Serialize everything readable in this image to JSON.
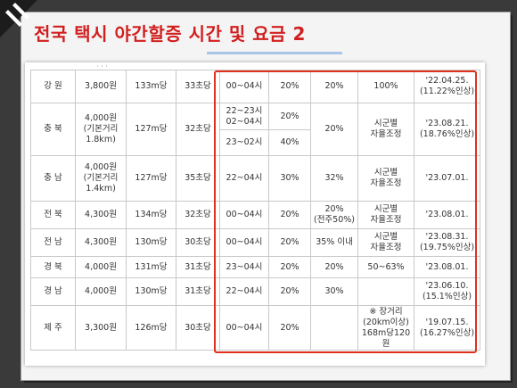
{
  "slide": {
    "title": "전국 택시 야간할증 시간 및 요금 2"
  },
  "table": {
    "rows": [
      {
        "region": "강 원",
        "fare": "3,800원",
        "dist": "133m당",
        "time": "33초당",
        "hours": "00~04시",
        "rate1": "20%",
        "rate2": "20%",
        "note": "100%",
        "date": "'22.04.25.",
        "date2": "(11.22%인상)"
      },
      {
        "region": "충 북",
        "fare": "4,000원",
        "fare2": "(기본거리",
        "fare3": "1.8km)",
        "dist": "127m당",
        "time": "32초당",
        "hours_a": "22~23시",
        "hours_a2": "02~04시",
        "rate1_a": "20%",
        "hours_b": "23~02시",
        "rate1_b": "40%",
        "rate2": "20%",
        "note": "시군별",
        "note2": "자율조정",
        "date": "'23.08.21.",
        "date2": "(18.76%인상)"
      },
      {
        "region": "충 남",
        "fare": "4,000원",
        "fare2": "(기본거리",
        "fare3": "1.4km)",
        "dist": "127m당",
        "time": "35초당",
        "hours": "22~04시",
        "rate1": "30%",
        "rate2": "32%",
        "note": "시군별",
        "note2": "자율조정",
        "date": "'23.07.01."
      },
      {
        "region": "전 북",
        "fare": "4,300원",
        "dist": "134m당",
        "time": "32초당",
        "hours": "00~04시",
        "rate1": "20%",
        "rate2": "20%",
        "rate2b": "(전주50%)",
        "note": "시군별",
        "note2": "자율조정",
        "date": "'23.08.01."
      },
      {
        "region": "전 남",
        "fare": "4,300원",
        "dist": "130m당",
        "time": "30초당",
        "hours": "00~04시",
        "rate1": "20%",
        "rate2": "35% 이내",
        "note": "시군별",
        "note2": "자율조정",
        "date": "'23.08.31.",
        "date2": "(19.75%인상)"
      },
      {
        "region": "경 북",
        "fare": "4,000원",
        "dist": "131m당",
        "time": "31초당",
        "hours": "23~04시",
        "rate1": "20%",
        "rate2": "20%",
        "note": "50~63%",
        "date": "'23.08.01."
      },
      {
        "region": "경 남",
        "fare": "4,000원",
        "dist": "130m당",
        "time": "31초당",
        "hours": "22~04시",
        "rate1": "20%",
        "rate2": "30%",
        "note": "",
        "date": "'23.06.10.",
        "date2": "(15.1%인상)"
      },
      {
        "region": "제 주",
        "fare": "3,300원",
        "dist": "126m당",
        "time": "30초당",
        "hours": "00~04시",
        "rate1": "20%",
        "rate2": "",
        "note": "※ 장거리",
        "note2": "(20km이상)",
        "note3": "168m당120원",
        "date": "'19.07.15.",
        "date2": "(16.27%인상)"
      }
    ]
  }
}
